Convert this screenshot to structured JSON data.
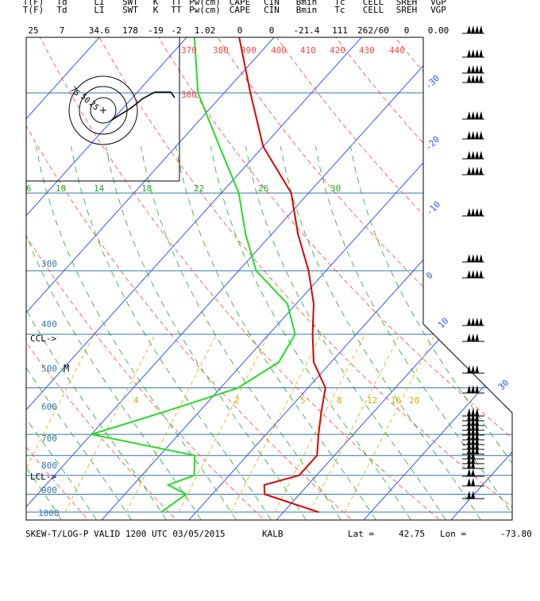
{
  "header": {
    "top_labels": [
      "T(F)",
      "Td",
      "LI",
      "SWT",
      "K",
      "TT",
      "Pw(cm)",
      "CAPE",
      "CIN",
      "Bmin",
      "Tc",
      "CELL",
      "SREH",
      "VGP"
    ],
    "names": [
      "T(F)",
      "Td",
      "LI",
      "SWT",
      "K",
      "TT",
      "Pw(cm)",
      "CAPE",
      "CIN",
      "Bmin",
      "Tc",
      "CELL",
      "SREH",
      "VGP"
    ],
    "values": [
      "25",
      "7",
      "34.6",
      "178",
      "-19",
      "-2",
      "1.02",
      "0",
      "0",
      "-21.4",
      "111",
      "262/60",
      "0",
      "0.00"
    ]
  },
  "chart_data": {
    "type": "skew-t log-p",
    "title": "SKEW-T/LOG-P VALID 1200 UTC 03/05/2015",
    "station": "KALB",
    "lat_label": "Lat =",
    "lat": "42.75",
    "lon_label": "Lon =",
    "lon": "-73.80",
    "pressure_ticks": [
      "300",
      "400",
      "500",
      "600",
      "700",
      "800",
      "900",
      "1000"
    ],
    "isotherm_labels": [
      "-30",
      "-20",
      "-10",
      "0",
      "10",
      "30"
    ],
    "theta_labels": [
      "370",
      "380",
      "390",
      "400",
      "410",
      "420",
      "430",
      "440",
      "360"
    ],
    "thetae_labels": [
      "6",
      "10",
      "14",
      "18",
      "22",
      "26",
      "30"
    ],
    "mixing_ratio_labels": [
      "4",
      "2",
      "5",
      "8",
      "12",
      "16",
      "20"
    ],
    "annotations": {
      "ccl": "CCL->",
      "lcl": "LCL->",
      "m_marker": "M"
    },
    "hodograph_labels": [
      "75",
      "50",
      "25"
    ],
    "colors": {
      "temperature": "#dd0000",
      "dewpoint": "#22dd22",
      "isotherm": "#3355ff",
      "isobar": "#3377aa",
      "dry_adiabat": "#ff4444",
      "moist_adiabat": "#22aa22",
      "mixing_ratio": "#ddaa00",
      "theta_e": "#22aa22"
    },
    "temperature_profile": [
      {
        "p": 1000,
        "t": 4
      },
      {
        "p": 950,
        "t": -4
      },
      {
        "p": 925,
        "t": -5
      },
      {
        "p": 900,
        "t": -2
      },
      {
        "p": 850,
        "t": -2
      },
      {
        "p": 800,
        "t": -4
      },
      {
        "p": 750,
        "t": -6
      },
      {
        "p": 700,
        "t": -8
      },
      {
        "p": 650,
        "t": -12
      },
      {
        "p": 600,
        "t": -15
      },
      {
        "p": 550,
        "t": -18
      },
      {
        "p": 500,
        "t": -22
      },
      {
        "p": 450,
        "t": -27
      },
      {
        "p": 400,
        "t": -32
      },
      {
        "p": 350,
        "t": -40
      },
      {
        "p": 300,
        "t": -47
      },
      {
        "p": 250,
        "t": -55
      },
      {
        "p": 225,
        "t": -56
      },
      {
        "p": 200,
        "t": -52
      },
      {
        "p": 150,
        "t": -50
      },
      {
        "p": 100,
        "t": -52
      }
    ],
    "dewpoint_profile": [
      {
        "p": 1000,
        "t": -14
      },
      {
        "p": 950,
        "t": -13
      },
      {
        "p": 925,
        "t": -16
      },
      {
        "p": 900,
        "t": -14
      },
      {
        "p": 850,
        "t": -16
      },
      {
        "p": 800,
        "t": -30
      },
      {
        "p": 750,
        "t": -24
      },
      {
        "p": 700,
        "t": -18
      },
      {
        "p": 650,
        "t": -16
      },
      {
        "p": 600,
        "t": -17
      },
      {
        "p": 550,
        "t": -21
      },
      {
        "p": 500,
        "t": -28
      },
      {
        "p": 450,
        "t": -33
      },
      {
        "p": 400,
        "t": -38
      },
      {
        "p": 350,
        "t": -45
      },
      {
        "p": 300,
        "t": -53
      },
      {
        "p": 250,
        "t": -60
      },
      {
        "p": 200,
        "t": -60
      },
      {
        "p": 150,
        "t": -62
      },
      {
        "p": 100,
        "t": -66
      }
    ]
  }
}
